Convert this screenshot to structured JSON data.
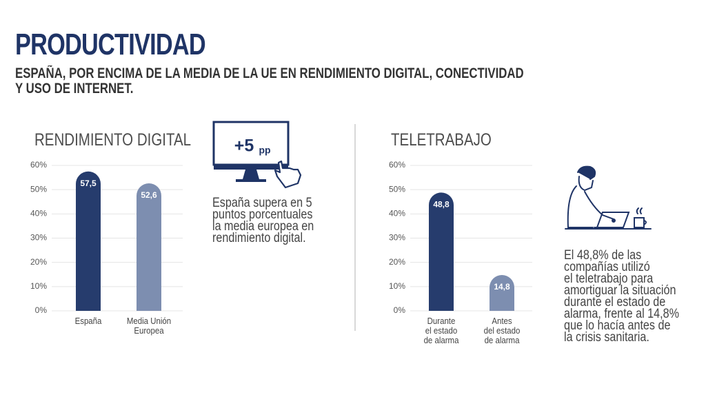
{
  "header": {
    "title": "PRODUCTIVIDAD",
    "subtitle": "ESPAÑA, POR ENCIMA DE LA MEDIA DE LA UE EN RENDIMIENTO DIGITAL, CONECTIVIDAD\nY USO DE INTERNET."
  },
  "callouts": [
    {
      "badge": "+5",
      "unit": "pp",
      "text": "España supera en 5\npuntos porcentuales\nla media europea en\nrendimiento digital."
    },
    {
      "text": "El 48,8% de las\ncompañías utilizó\nel teletrabajo para\namortiguar la situación\ndurante el estado de\nalarma, frente al 14,8%\nque lo hacía antes de\nla crisis sanitaria."
    }
  ],
  "chart_data": [
    {
      "type": "bar",
      "title": "RENDIMIENTO DIGITAL",
      "categories": [
        "España",
        "Media Unión\nEuropea"
      ],
      "values": [
        57.5,
        52.6
      ],
      "value_labels": [
        "57,5",
        "52,6"
      ],
      "colors": [
        "#263c6d",
        "#7d8eb0"
      ],
      "ylim": [
        0,
        60
      ],
      "yticks": [
        {
          "value": 0,
          "label": "0%"
        },
        {
          "value": 10,
          "label": "10%"
        },
        {
          "value": 20,
          "label": "20%"
        },
        {
          "value": 30,
          "label": "30%"
        },
        {
          "value": 40,
          "label": "40%"
        },
        {
          "value": 50,
          "label": "50%"
        },
        {
          "value": 60,
          "label": "60%"
        }
      ],
      "grid": true
    },
    {
      "type": "bar",
      "title": "TELETRABAJO",
      "categories": [
        "Durante\nel estado\nde alarma",
        "Antes\ndel estado\nde alarma"
      ],
      "values": [
        48.8,
        14.8
      ],
      "value_labels": [
        "48,8",
        "14,8"
      ],
      "colors": [
        "#263c6d",
        "#7d8eb0"
      ],
      "ylim": [
        0,
        60
      ],
      "yticks": [
        {
          "value": 0,
          "label": "0%"
        },
        {
          "value": 10,
          "label": "10%"
        },
        {
          "value": 20,
          "label": "20%"
        },
        {
          "value": 30,
          "label": "30%"
        },
        {
          "value": 40,
          "label": "40%"
        },
        {
          "value": 50,
          "label": "50%"
        },
        {
          "value": 60,
          "label": "60%"
        }
      ],
      "grid": true
    }
  ]
}
